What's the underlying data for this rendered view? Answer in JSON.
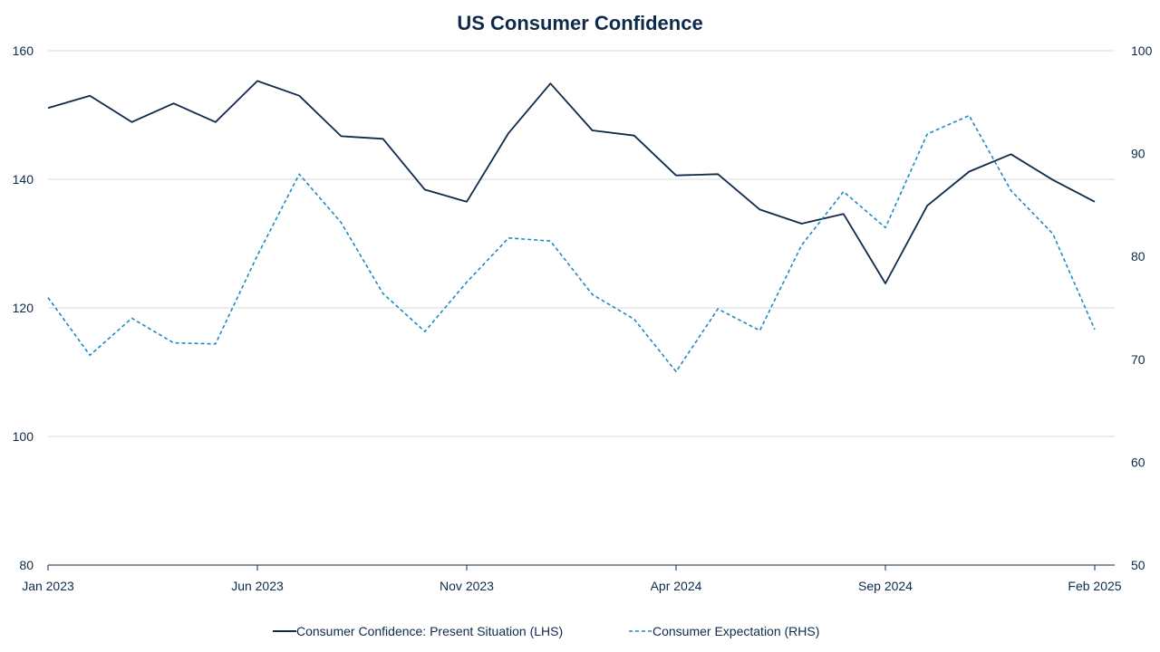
{
  "chart_data": {
    "type": "line",
    "title": "US Consumer Confidence",
    "x": [
      "Jan 2023",
      "Feb 2023",
      "Mar 2023",
      "Apr 2023",
      "May 2023",
      "Jun 2023",
      "Jul 2023",
      "Aug 2023",
      "Sep 2023",
      "Oct 2023",
      "Nov 2023",
      "Dec 2023",
      "Jan 2024",
      "Feb 2024",
      "Mar 2024",
      "Apr 2024",
      "May 2024",
      "Jun 2024",
      "Jul 2024",
      "Aug 2024",
      "Sep 2024",
      "Oct 2024",
      "Nov 2024",
      "Dec 2024",
      "Jan 2025",
      "Feb 2025"
    ],
    "x_tick_labels": [
      "Jan 2023",
      "Jun 2023",
      "Nov 2023",
      "Apr 2024",
      "Sep 2024",
      "Feb 2025"
    ],
    "series": [
      {
        "name": "Consumer Confidence: Present Situation (LHS)",
        "axis": "left",
        "style": "solid",
        "color": "#0e2a4a",
        "values": [
          151.1,
          153.0,
          148.9,
          151.8,
          148.9,
          155.3,
          153.0,
          146.7,
          146.3,
          138.4,
          136.5,
          147.2,
          154.9,
          147.6,
          146.8,
          140.6,
          140.8,
          135.3,
          133.1,
          134.6,
          123.8,
          135.9,
          141.2,
          143.9,
          139.9,
          136.5
        ]
      },
      {
        "name": "Consumer Expectation (RHS)",
        "axis": "right",
        "style": "dashed",
        "color": "#1b8ac4",
        "values": [
          76.0,
          70.4,
          74.0,
          71.6,
          71.5,
          80.1,
          88.0,
          83.3,
          76.4,
          72.7,
          77.5,
          81.8,
          81.5,
          76.3,
          73.9,
          68.8,
          74.9,
          72.8,
          81.1,
          86.3,
          82.8,
          91.9,
          93.7,
          86.4,
          82.2,
          72.9
        ]
      }
    ],
    "y_left": {
      "ylim": [
        80,
        160
      ],
      "ticks": [
        80,
        100,
        120,
        140,
        160
      ]
    },
    "y_right": {
      "ylim": [
        50,
        100
      ],
      "ticks": [
        50,
        60,
        70,
        80,
        90,
        100
      ]
    },
    "grid": true,
    "legend_position": "bottom"
  }
}
